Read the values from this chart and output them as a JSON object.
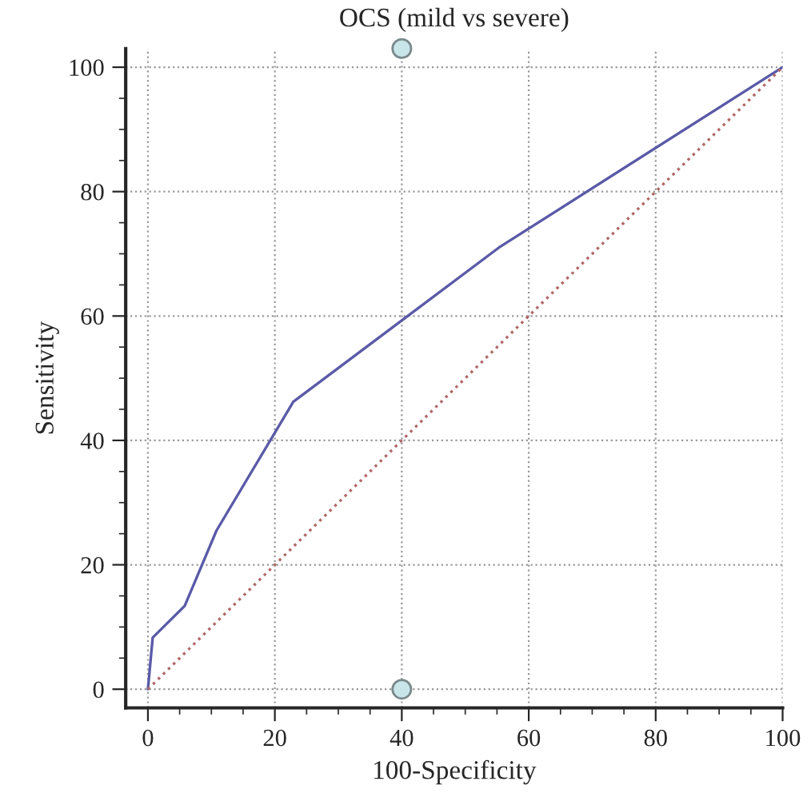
{
  "chart_data": {
    "type": "line",
    "title": "OCS (mild vs severe)",
    "xlabel": "100-Specificity",
    "ylabel": "Sensitivity",
    "xlim": [
      -3.5,
      100
    ],
    "ylim": [
      -3,
      103
    ],
    "xticks": [
      0,
      20,
      40,
      60,
      80,
      100
    ],
    "yticks": [
      0,
      20,
      40,
      60,
      80,
      100
    ],
    "grid": true,
    "series": [
      {
        "color": "#5a5aa8",
        "line_style": "solid",
        "marker": "none",
        "x": [
          0,
          0.75,
          5.8,
          10.8,
          22.9,
          55.3,
          100
        ],
        "values": [
          0,
          8.3,
          13.4,
          25.5,
          46.2,
          71,
          100
        ]
      },
      {
        "type": "line",
        "color": "#b06868",
        "line_style": "dotted",
        "marker": "none",
        "x": [
          0,
          100
        ],
        "values": [
          0,
          100
        ]
      },
      {
        "type": "scatter",
        "color": "#c8e6ea",
        "marker": "circle",
        "x": [
          40,
          40
        ],
        "values": [
          103,
          0
        ]
      }
    ]
  }
}
